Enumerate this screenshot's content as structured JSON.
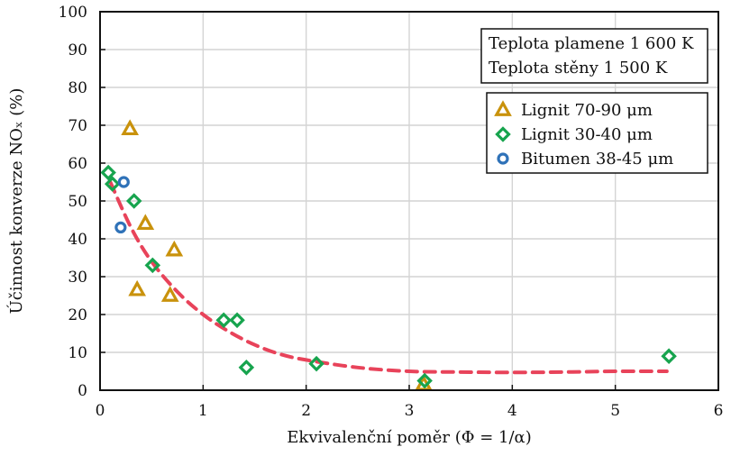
{
  "chart_data": {
    "type": "scatter",
    "title": "",
    "xlabel": "Ekvivalenční poměr (Φ = 1/α)",
    "ylabel": "Účinnost konverze NOₓ (%)",
    "xlim": [
      0,
      6
    ],
    "ylim": [
      0,
      100
    ],
    "x_ticks": [
      "0",
      "1",
      "2",
      "3",
      "4",
      "5",
      "6"
    ],
    "y_ticks": [
      "0",
      "10",
      "20",
      "30",
      "40",
      "50",
      "60",
      "70",
      "80",
      "90",
      "100"
    ],
    "grid": true,
    "info_box": [
      "Teplota plamene 1 600 K",
      "Teplota stěny 1 500 K"
    ],
    "legend_position": "top-right",
    "series": [
      {
        "name": "Lignit 70-90 μm",
        "marker": "triangle",
        "color": "#c9920c",
        "x": [
          0.29,
          0.36,
          0.44,
          0.68,
          0.72,
          3.14
        ],
        "y": [
          69,
          26.5,
          44,
          25,
          37,
          1.5
        ]
      },
      {
        "name": "Lignit 30-40 μm",
        "marker": "diamond",
        "color": "#17a44e",
        "x": [
          0.08,
          0.12,
          0.33,
          0.51,
          1.2,
          1.33,
          1.42,
          2.1,
          3.15,
          5.52
        ],
        "y": [
          57.5,
          54.5,
          50,
          33,
          18.5,
          18.5,
          6,
          7,
          2.5,
          9
        ]
      },
      {
        "name": "Bitumen 38-45 μm",
        "marker": "circle",
        "color": "#2f72b8",
        "x": [
          0.2,
          0.23
        ],
        "y": [
          43,
          55
        ]
      }
    ],
    "trend_line": {
      "style": "dashed",
      "color": "#e8435a",
      "x": [
        0.1,
        0.3,
        0.5,
        0.75,
        1.0,
        1.25,
        1.5,
        1.75,
        2.0,
        2.5,
        3.0,
        3.5,
        4.0,
        4.5,
        5.0,
        5.5
      ],
      "y": [
        55,
        43,
        34,
        26,
        20,
        15.5,
        12,
        9.5,
        8,
        6,
        5,
        4.8,
        4.7,
        4.8,
        5,
        5
      ]
    }
  }
}
